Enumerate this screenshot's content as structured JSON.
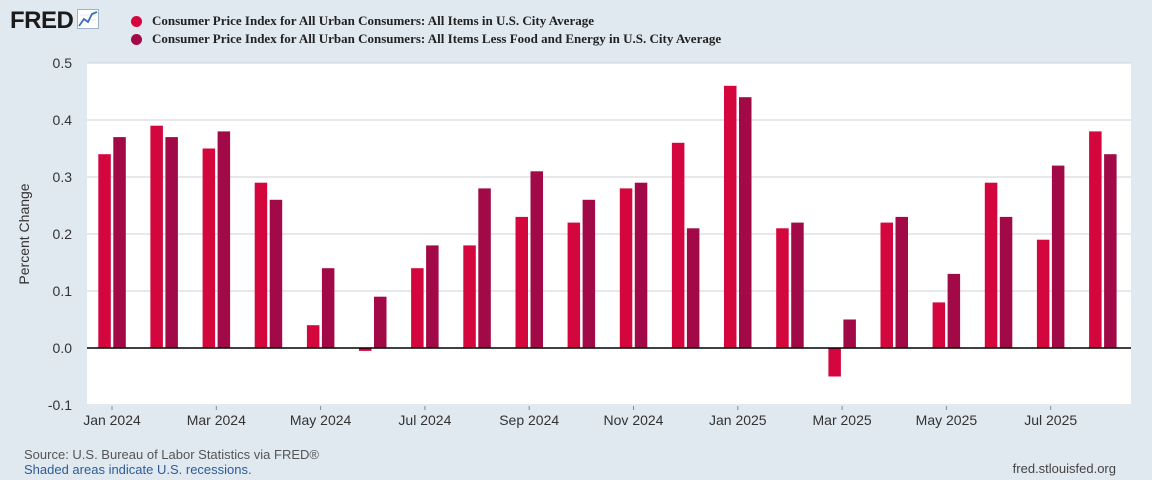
{
  "brand": {
    "logo_text": "FRED",
    "logo_icon": "line-chart-icon"
  },
  "colors": {
    "series1": "#d3063e",
    "series2": "#a10a46",
    "plot_bg": "#ffffff",
    "page_bg": "#e1e9f0",
    "grid": "#cfd2d6",
    "zero_line": "#000000"
  },
  "footer": {
    "source": "Source: U.S. Bureau of Labor Statistics via FRED®",
    "recessions": "Shaded areas indicate U.S. recessions.",
    "site": "fred.stlouisfed.org"
  },
  "chart_data": {
    "type": "bar",
    "title": "",
    "xlabel": "",
    "ylabel": "Percent Change",
    "ylim": [
      -0.1,
      0.5
    ],
    "yticks": [
      -0.1,
      0.0,
      0.1,
      0.2,
      0.3,
      0.4,
      0.5
    ],
    "ytick_labels": [
      "-0.1",
      "0.0",
      "0.1",
      "0.2",
      "0.3",
      "0.4",
      "0.5"
    ],
    "grid": true,
    "legend_position": "top-left",
    "categories": [
      "2024-01",
      "2024-02",
      "2024-03",
      "2024-04",
      "2024-05",
      "2024-06",
      "2024-07",
      "2024-08",
      "2024-09",
      "2024-10",
      "2024-11",
      "2024-12",
      "2025-01",
      "2025-02",
      "2025-03",
      "2025-04",
      "2025-05",
      "2025-06",
      "2025-07",
      "2025-08"
    ],
    "x_tick_labels": [
      {
        "index": 0,
        "label": "Jan 2024"
      },
      {
        "index": 2,
        "label": "Mar 2024"
      },
      {
        "index": 4,
        "label": "May 2024"
      },
      {
        "index": 6,
        "label": "Jul 2024"
      },
      {
        "index": 8,
        "label": "Sep 2024"
      },
      {
        "index": 10,
        "label": "Nov 2024"
      },
      {
        "index": 12,
        "label": "Jan 2025"
      },
      {
        "index": 14,
        "label": "Mar 2025"
      },
      {
        "index": 16,
        "label": "May 2025"
      },
      {
        "index": 18,
        "label": "Jul 2025"
      }
    ],
    "series": [
      {
        "name": "Consumer Price Index for All Urban Consumers: All Items in U.S. City Average",
        "values": [
          0.34,
          0.39,
          0.35,
          0.29,
          0.04,
          -0.005,
          0.14,
          0.18,
          0.23,
          0.22,
          0.28,
          0.36,
          0.46,
          0.21,
          -0.05,
          0.22,
          0.08,
          0.29,
          0.19,
          0.38
        ]
      },
      {
        "name": "Consumer Price Index for All Urban Consumers: All Items Less Food and Energy in U.S. City Average",
        "values": [
          0.37,
          0.37,
          0.38,
          0.26,
          0.14,
          0.09,
          0.18,
          0.28,
          0.31,
          0.26,
          0.29,
          0.21,
          0.44,
          0.22,
          0.05,
          0.23,
          0.13,
          0.23,
          0.32,
          0.34
        ]
      }
    ]
  }
}
